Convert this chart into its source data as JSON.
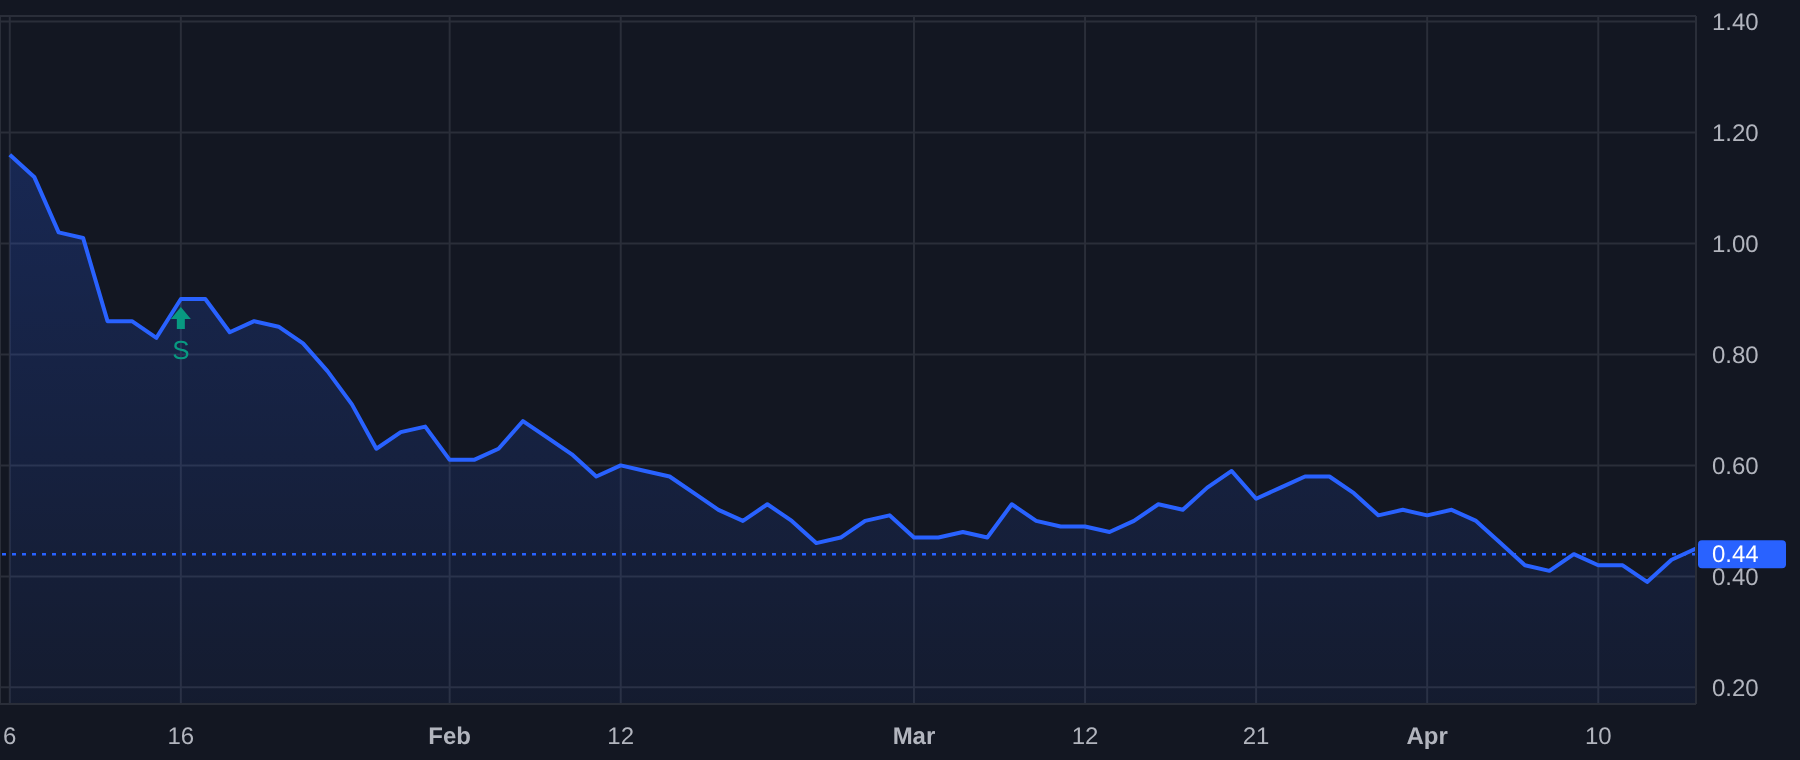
{
  "chart_data": {
    "type": "area",
    "categories": [
      "6",
      null,
      null,
      null,
      null,
      null,
      null,
      "16",
      null,
      null,
      null,
      null,
      null,
      null,
      null,
      null,
      null,
      null,
      "Feb",
      null,
      null,
      null,
      null,
      null,
      null,
      "12",
      null,
      null,
      null,
      null,
      null,
      null,
      null,
      null,
      null,
      null,
      null,
      "Mar",
      null,
      null,
      null,
      null,
      null,
      null,
      "12",
      null,
      null,
      null,
      null,
      null,
      null,
      "21",
      null,
      null,
      null,
      null,
      null,
      null,
      "Apr",
      null,
      null,
      null,
      null,
      null,
      null,
      "10",
      null,
      null,
      null,
      null
    ],
    "series": [
      {
        "color": "#2962ff",
        "values": [
          1.16,
          1.12,
          1.02,
          1.01,
          0.86,
          0.86,
          0.83,
          0.9,
          0.9,
          0.84,
          0.86,
          0.85,
          0.82,
          0.77,
          0.71,
          0.63,
          0.66,
          0.67,
          0.61,
          0.61,
          0.63,
          0.68,
          0.65,
          0.62,
          0.58,
          0.6,
          0.59,
          0.58,
          0.55,
          0.52,
          0.5,
          0.53,
          0.5,
          0.46,
          0.47,
          0.5,
          0.51,
          0.47,
          0.47,
          0.48,
          0.47,
          0.53,
          0.5,
          0.49,
          0.49,
          0.48,
          0.5,
          0.53,
          0.52,
          0.56,
          0.59,
          0.54,
          0.56,
          0.58,
          0.58,
          0.55,
          0.51,
          0.52,
          0.51,
          0.52,
          0.5,
          0.46,
          0.42,
          0.41,
          0.44,
          0.42,
          0.42,
          0.39,
          0.43,
          0.45
        ]
      }
    ],
    "ylim": [
      0.17,
      1.41
    ],
    "yticks": [
      {
        "value": 0.2,
        "label": "0.20"
      },
      {
        "value": 0.4,
        "label": "0.40"
      },
      {
        "value": 0.6,
        "label": "0.60"
      },
      {
        "value": 0.8,
        "label": "0.80"
      },
      {
        "value": 1.0,
        "label": "1.00"
      },
      {
        "value": 1.2,
        "label": "1.20"
      },
      {
        "value": 1.4,
        "label": "1.40"
      }
    ],
    "grid": true,
    "ref_lines": [
      {
        "axis": "y",
        "value": 0.44,
        "label": "0.44",
        "color": "#2962ff",
        "line_style": "dotted"
      }
    ],
    "annotations": [
      {
        "text": "S",
        "x": "16",
        "y": 0.9
      }
    ]
  }
}
